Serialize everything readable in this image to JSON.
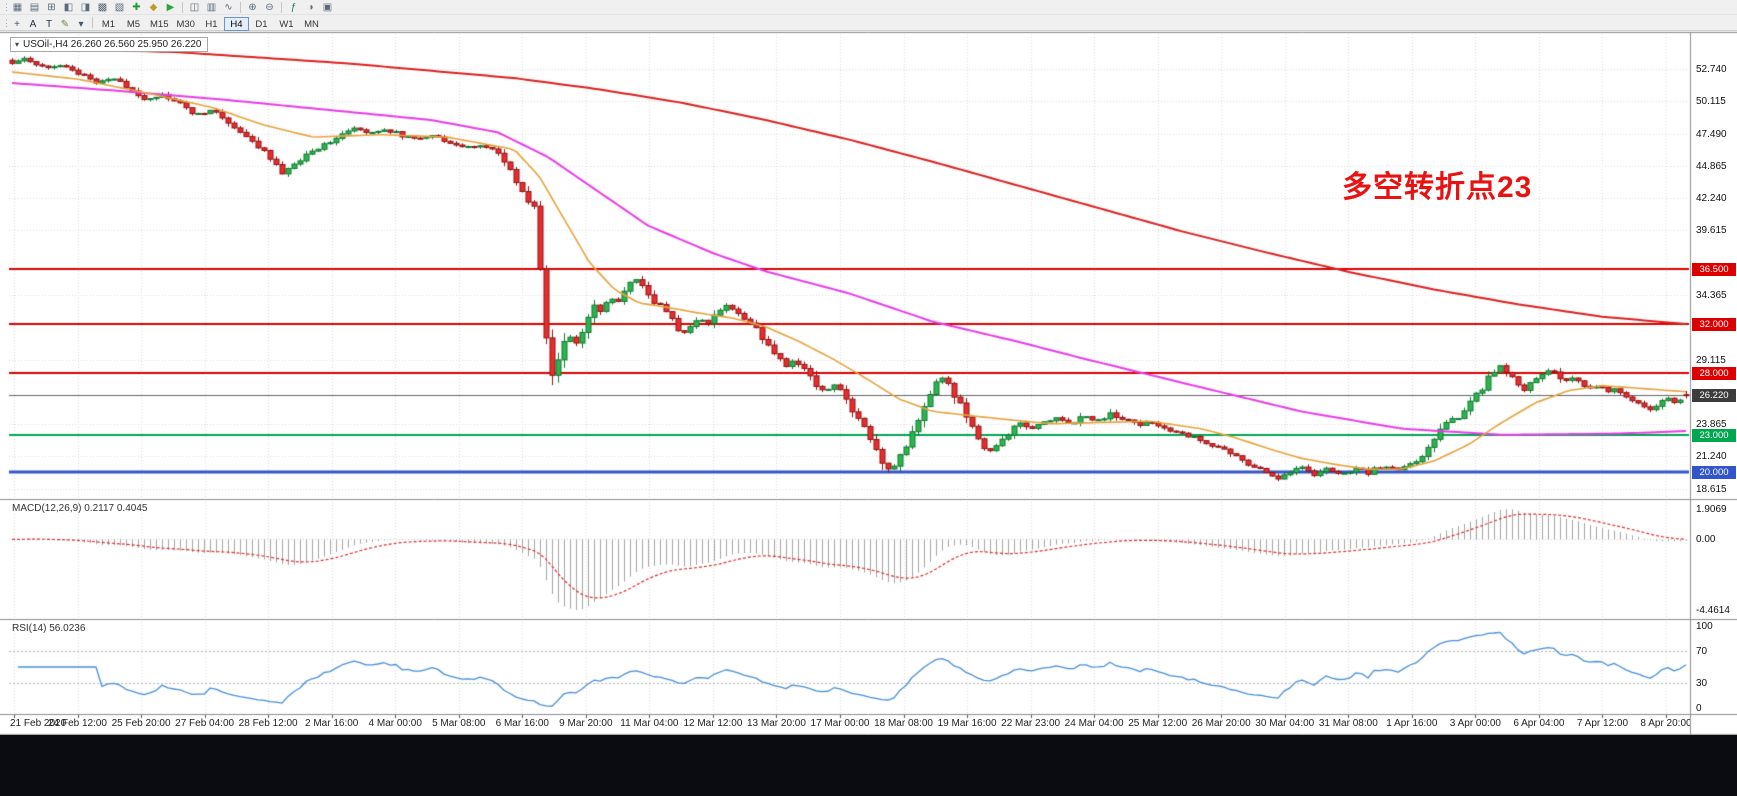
{
  "window": {
    "taskbar_color": "#0b0b12",
    "toolbar_bg": "#f0f0f0"
  },
  "toolbar": {
    "row1_icons": [
      {
        "name": "new-chart-icon",
        "glyph": "▦",
        "color": "#5a6a7a"
      },
      {
        "name": "chart-profiles-icon",
        "glyph": "▤",
        "color": "#5a6a7a"
      },
      {
        "name": "market-watch-icon",
        "glyph": "⊞",
        "color": "#5a6a7a"
      },
      {
        "name": "data-window-icon",
        "glyph": "◧",
        "color": "#5a6a7a"
      },
      {
        "name": "navigator-icon",
        "glyph": "◨",
        "color": "#5a6a7a"
      },
      {
        "name": "terminal-icon",
        "glyph": "▩",
        "color": "#5a6a7a"
      },
      {
        "name": "strategy-tester-icon",
        "glyph": "▧",
        "color": "#5a6a7a"
      },
      {
        "name": "new-order-icon",
        "glyph": "✚",
        "color": "#1f9d2f"
      },
      {
        "name": "metaeditor-icon",
        "glyph": "◆",
        "color": "#c09a2c"
      },
      {
        "name": "autotrading-icon",
        "glyph": "▶",
        "color": "#2aa63a"
      },
      {
        "name": "separator",
        "glyph": "",
        "color": ""
      },
      {
        "name": "candlestick-chart-icon",
        "glyph": "◫",
        "color": "#5a6a7a"
      },
      {
        "name": "bar-chart-icon",
        "glyph": "▥",
        "color": "#5a6a7a"
      },
      {
        "name": "line-chart-icon",
        "glyph": "∿",
        "color": "#5a6a7a"
      },
      {
        "name": "separator",
        "glyph": "",
        "color": ""
      },
      {
        "name": "zoom-in-icon",
        "glyph": "⊕",
        "color": "#5a6a7a"
      },
      {
        "name": "zoom-out-icon",
        "glyph": "⊖",
        "color": "#5a6a7a"
      },
      {
        "name": "separator",
        "glyph": "",
        "color": ""
      },
      {
        "name": "indicators-icon",
        "glyph": "ƒ",
        "color": "#0a7a5a"
      },
      {
        "name": "periods-icon",
        "glyph": "◑",
        "color": "#5a6a7a"
      },
      {
        "name": "templates-icon",
        "glyph": "▣",
        "color": "#5a6a7a"
      }
    ],
    "row2_tools": [
      {
        "name": "cursor-tool-icon",
        "glyph": "+",
        "color": "#445566"
      },
      {
        "name": "crosshair-tool",
        "glyph": "A",
        "color": "#223344"
      },
      {
        "name": "text-tool",
        "glyph": "T",
        "color": "#223344"
      },
      {
        "name": "line-styles-icon",
        "glyph": "✎",
        "color": "#6a8a3a"
      },
      {
        "name": "styles-dropdown-icon",
        "glyph": "▾",
        "color": "#445566"
      }
    ],
    "timeframes": [
      {
        "label": "M1",
        "active": false
      },
      {
        "label": "M5",
        "active": false
      },
      {
        "label": "M15",
        "active": false
      },
      {
        "label": "M30",
        "active": false
      },
      {
        "label": "H1",
        "active": false
      },
      {
        "label": "H4",
        "active": true
      },
      {
        "label": "D1",
        "active": false
      },
      {
        "label": "W1",
        "active": false
      },
      {
        "label": "MN",
        "active": false
      }
    ]
  },
  "chart": {
    "symbol_dropdown_glyph": "▾",
    "symbol_header": "USOil-,H4  26.260 26.560 25.950 26.220",
    "annotation": {
      "text": "多空转折点23",
      "color": "#e81212"
    }
  },
  "indicators": {
    "macd_label": "MACD(12,26,9) 0.2117 0.4045",
    "rsi_label": "RSI(14) 56.0236"
  },
  "chart_data": {
    "type": "candlestick",
    "symbol": "USOil",
    "timeframe": "H4",
    "ohlc_current": {
      "open": 26.26,
      "high": 26.56,
      "low": 25.95,
      "close": 26.22
    },
    "candle_count": 280,
    "up_color": "#2db44f",
    "up_border": "#0f7a30",
    "down_color": "#e62e2e",
    "down_border": "#951111",
    "grid_color": "#dcdcdc",
    "price_tick_labels": [
      "52.740",
      "50.115",
      "47.490",
      "44.865",
      "42.240",
      "39.615",
      "34.365",
      "29.115",
      "23.865",
      "21.240",
      "18.615"
    ],
    "hlines": [
      {
        "price": 36.5,
        "label": "36.500",
        "color": "#dd0000",
        "width": 2
      },
      {
        "price": 32.0,
        "label": "32.000",
        "color": "#dd0000",
        "width": 2
      },
      {
        "price": 28.0,
        "label": "28.000",
        "color": "#dd0000",
        "width": 2
      },
      {
        "price": 26.22,
        "label": "26.220",
        "color": "#666666",
        "width": 1,
        "badge": "#3c3c3c"
      },
      {
        "price": 23.0,
        "label": "23.000",
        "color": "#00a650",
        "width": 2
      },
      {
        "price": 20.0,
        "label": "20.000",
        "color": "#3355cc",
        "width": 3
      }
    ],
    "x_labels": [
      "21 Feb 2020",
      "24 Feb 12:00",
      "25 Feb 20:00",
      "27 Feb 04:00",
      "28 Feb 12:00",
      "2 Mar 16:00",
      "4 Mar 00:00",
      "5 Mar 08:00",
      "6 Mar 16:00",
      "9 Mar 20:00",
      "11 Mar 04:00",
      "12 Mar 12:00",
      "13 Mar 20:00",
      "17 Mar 00:00",
      "18 Mar 08:00",
      "19 Mar 16:00",
      "22 Mar 23:00",
      "24 Mar 04:00",
      "25 Mar 12:00",
      "26 Mar 20:00",
      "30 Mar 04:00",
      "31 Mar 08:00",
      "1 Apr 16:00",
      "3 Apr 00:00",
      "6 Apr 04:00",
      "7 Apr 12:00",
      "8 Apr 20:00"
    ],
    "price_path": [
      [
        0,
        53.2
      ],
      [
        0.006,
        53.7
      ],
      [
        0.012,
        53.3
      ],
      [
        0.02,
        52.9
      ],
      [
        0.03,
        53.1
      ],
      [
        0.04,
        52.3
      ],
      [
        0.05,
        51.7
      ],
      [
        0.06,
        52.0
      ],
      [
        0.07,
        51.1
      ],
      [
        0.08,
        50.3
      ],
      [
        0.09,
        50.6
      ],
      [
        0.1,
        49.9
      ],
      [
        0.11,
        49.0
      ],
      [
        0.12,
        49.4
      ],
      [
        0.13,
        48.3
      ],
      [
        0.14,
        47.1
      ],
      [
        0.15,
        46.2
      ],
      [
        0.156,
        45.0
      ],
      [
        0.162,
        44.2
      ],
      [
        0.168,
        44.9
      ],
      [
        0.175,
        45.7
      ],
      [
        0.185,
        46.5
      ],
      [
        0.195,
        47.3
      ],
      [
        0.205,
        47.9
      ],
      [
        0.213,
        47.4
      ],
      [
        0.221,
        47.9
      ],
      [
        0.23,
        47.5
      ],
      [
        0.24,
        47.0
      ],
      [
        0.25,
        47.4
      ],
      [
        0.26,
        46.9
      ],
      [
        0.27,
        46.3
      ],
      [
        0.28,
        46.6
      ],
      [
        0.29,
        45.9
      ],
      [
        0.296,
        44.7
      ],
      [
        0.302,
        43.3
      ],
      [
        0.308,
        42.1
      ],
      [
        0.313,
        41.4
      ],
      [
        0.317,
        33.0
      ],
      [
        0.32,
        29.6
      ],
      [
        0.323,
        27.7
      ],
      [
        0.327,
        29.4
      ],
      [
        0.332,
        31.2
      ],
      [
        0.337,
        30.3
      ],
      [
        0.342,
        32.0
      ],
      [
        0.347,
        33.4
      ],
      [
        0.352,
        33.0
      ],
      [
        0.357,
        34.3
      ],
      [
        0.362,
        33.7
      ],
      [
        0.367,
        34.9
      ],
      [
        0.372,
        35.8
      ],
      [
        0.377,
        34.9
      ],
      [
        0.383,
        33.9
      ],
      [
        0.389,
        33.2
      ],
      [
        0.395,
        32.4
      ],
      [
        0.4,
        31.0
      ],
      [
        0.405,
        31.8
      ],
      [
        0.41,
        32.5
      ],
      [
        0.415,
        31.9
      ],
      [
        0.421,
        32.9
      ],
      [
        0.427,
        33.5
      ],
      [
        0.433,
        33.0
      ],
      [
        0.439,
        32.2
      ],
      [
        0.445,
        31.5
      ],
      [
        0.45,
        30.5
      ],
      [
        0.456,
        29.6
      ],
      [
        0.462,
        28.6
      ],
      [
        0.468,
        29.0
      ],
      [
        0.474,
        28.2
      ],
      [
        0.48,
        27.0
      ],
      [
        0.486,
        26.5
      ],
      [
        0.491,
        27.2
      ],
      [
        0.496,
        26.3
      ],
      [
        0.501,
        25.2
      ],
      [
        0.506,
        24.2
      ],
      [
        0.511,
        23.1
      ],
      [
        0.516,
        21.8
      ],
      [
        0.521,
        20.6
      ],
      [
        0.526,
        20.2
      ],
      [
        0.531,
        21.4
      ],
      [
        0.536,
        22.7
      ],
      [
        0.541,
        24.2
      ],
      [
        0.546,
        25.8
      ],
      [
        0.551,
        27.0
      ],
      [
        0.556,
        27.6
      ],
      [
        0.561,
        26.7
      ],
      [
        0.566,
        25.5
      ],
      [
        0.571,
        24.1
      ],
      [
        0.576,
        22.8
      ],
      [
        0.581,
        21.9
      ],
      [
        0.586,
        21.7
      ],
      [
        0.591,
        22.5
      ],
      [
        0.596,
        23.3
      ],
      [
        0.601,
        23.9
      ],
      [
        0.608,
        23.5
      ],
      [
        0.616,
        24.0
      ],
      [
        0.624,
        24.4
      ],
      [
        0.632,
        23.9
      ],
      [
        0.64,
        24.5
      ],
      [
        0.648,
        24.1
      ],
      [
        0.656,
        24.7
      ],
      [
        0.664,
        24.2
      ],
      [
        0.672,
        23.8
      ],
      [
        0.681,
        24.0
      ],
      [
        0.69,
        23.4
      ],
      [
        0.7,
        23.0
      ],
      [
        0.71,
        22.6
      ],
      [
        0.72,
        22.0
      ],
      [
        0.73,
        21.3
      ],
      [
        0.74,
        20.5
      ],
      [
        0.75,
        19.9
      ],
      [
        0.756,
        19.5
      ],
      [
        0.762,
        19.9
      ],
      [
        0.77,
        20.4
      ],
      [
        0.778,
        19.8
      ],
      [
        0.786,
        20.3
      ],
      [
        0.794,
        19.7
      ],
      [
        0.802,
        20.3
      ],
      [
        0.81,
        19.9
      ],
      [
        0.818,
        20.5
      ],
      [
        0.826,
        20.1
      ],
      [
        0.834,
        20.6
      ],
      [
        0.84,
        21.0
      ],
      [
        0.846,
        21.9
      ],
      [
        0.852,
        23.3
      ],
      [
        0.858,
        24.5
      ],
      [
        0.863,
        24.1
      ],
      [
        0.868,
        25.1
      ],
      [
        0.873,
        25.9
      ],
      [
        0.878,
        26.8
      ],
      [
        0.883,
        27.9
      ],
      [
        0.888,
        28.6
      ],
      [
        0.893,
        28.0
      ],
      [
        0.898,
        27.2
      ],
      [
        0.903,
        26.7
      ],
      [
        0.908,
        27.2
      ],
      [
        0.913,
        27.8
      ],
      [
        0.918,
        28.3
      ],
      [
        0.923,
        27.8
      ],
      [
        0.928,
        27.3
      ],
      [
        0.933,
        27.6
      ],
      [
        0.938,
        27.1
      ],
      [
        0.943,
        26.8
      ],
      [
        0.948,
        27.0
      ],
      [
        0.953,
        26.5
      ],
      [
        0.958,
        26.8
      ],
      [
        0.963,
        26.3
      ],
      [
        0.968,
        25.9
      ],
      [
        0.973,
        25.4
      ],
      [
        0.978,
        25.0
      ],
      [
        0.983,
        25.6
      ],
      [
        0.988,
        26.0
      ],
      [
        0.993,
        25.6
      ],
      [
        1,
        26.22
      ]
    ],
    "ma_fast": {
      "color": "#e8a33d",
      "width": 1.6,
      "points": [
        [
          0,
          52.5
        ],
        [
          0.04,
          51.9
        ],
        [
          0.08,
          50.8
        ],
        [
          0.12,
          49.6
        ],
        [
          0.15,
          48.2
        ],
        [
          0.18,
          47.2
        ],
        [
          0.22,
          47.4
        ],
        [
          0.26,
          47.2
        ],
        [
          0.3,
          46.2
        ],
        [
          0.315,
          44.0
        ],
        [
          0.33,
          40.5
        ],
        [
          0.345,
          37.0
        ],
        [
          0.36,
          34.8
        ],
        [
          0.375,
          33.7
        ],
        [
          0.39,
          33.4
        ],
        [
          0.41,
          32.9
        ],
        [
          0.43,
          32.5
        ],
        [
          0.45,
          31.8
        ],
        [
          0.47,
          30.6
        ],
        [
          0.49,
          29.2
        ],
        [
          0.51,
          27.6
        ],
        [
          0.53,
          25.9
        ],
        [
          0.55,
          24.9
        ],
        [
          0.57,
          24.6
        ],
        [
          0.59,
          24.3
        ],
        [
          0.62,
          23.9
        ],
        [
          0.65,
          24.0
        ],
        [
          0.68,
          24.1
        ],
        [
          0.71,
          23.5
        ],
        [
          0.73,
          22.8
        ],
        [
          0.75,
          21.9
        ],
        [
          0.77,
          21.1
        ],
        [
          0.79,
          20.6
        ],
        [
          0.81,
          20.2
        ],
        [
          0.83,
          20.2
        ],
        [
          0.85,
          20.9
        ],
        [
          0.87,
          22.2
        ],
        [
          0.89,
          24.0
        ],
        [
          0.91,
          25.6
        ],
        [
          0.93,
          26.6
        ],
        [
          0.95,
          27.0
        ],
        [
          0.97,
          26.8
        ],
        [
          1,
          26.5
        ]
      ]
    },
    "ma_mid": {
      "color": "#e93ce9",
      "width": 2,
      "points": [
        [
          0,
          51.6
        ],
        [
          0.06,
          51.0
        ],
        [
          0.13,
          50.2
        ],
        [
          0.19,
          49.4
        ],
        [
          0.25,
          48.6
        ],
        [
          0.29,
          47.6
        ],
        [
          0.32,
          45.6
        ],
        [
          0.35,
          42.8
        ],
        [
          0.38,
          40.0
        ],
        [
          0.42,
          37.7
        ],
        [
          0.45,
          36.3
        ],
        [
          0.5,
          34.5
        ],
        [
          0.55,
          32.2
        ],
        [
          0.6,
          30.6
        ],
        [
          0.64,
          29.2
        ],
        [
          0.7,
          27.2
        ],
        [
          0.77,
          24.9
        ],
        [
          0.83,
          23.5
        ],
        [
          0.89,
          23.0
        ],
        [
          0.96,
          23.1
        ],
        [
          1,
          23.3
        ]
      ]
    },
    "ma_slow": {
      "color": "#dd2020",
      "width": 2,
      "points": [
        [
          0,
          54.6
        ],
        [
          0.1,
          54.1
        ],
        [
          0.2,
          53.2
        ],
        [
          0.3,
          52.0
        ],
        [
          0.35,
          51.1
        ],
        [
          0.4,
          50.0
        ],
        [
          0.45,
          48.6
        ],
        [
          0.5,
          47.0
        ],
        [
          0.55,
          45.2
        ],
        [
          0.6,
          43.3
        ],
        [
          0.65,
          41.4
        ],
        [
          0.7,
          39.5
        ],
        [
          0.75,
          37.8
        ],
        [
          0.8,
          36.2
        ],
        [
          0.85,
          34.8
        ],
        [
          0.9,
          33.6
        ],
        [
          0.95,
          32.6
        ],
        [
          1,
          32.0
        ]
      ]
    },
    "macd": {
      "ticks": [
        "1.9069",
        "0.00",
        "-4.4614"
      ],
      "hist_color": "#a3a3a3",
      "signal_color": "#e03030",
      "zero_grid_color": "#cfcfcf"
    },
    "rsi": {
      "ticks": [
        "100",
        "70",
        "30",
        "0"
      ],
      "levels": [
        70,
        30
      ],
      "line_color": "#4a90d9",
      "level_color": "#b8b8b8"
    }
  }
}
